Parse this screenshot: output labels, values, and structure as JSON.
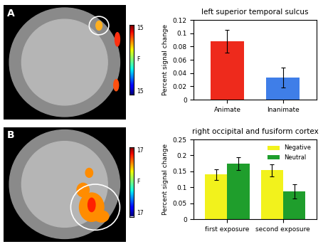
{
  "chart_data": [
    {
      "type": "bar",
      "panel": "A",
      "title": "left superior temporal sulcus",
      "y_label": "Percent signal change",
      "categories": [
        "Animate",
        "Inanimate"
      ],
      "values": [
        0.088,
        0.033
      ],
      "errors": [
        0.017,
        0.015
      ],
      "colors": [
        "#ee2a1c",
        "#3f7ee8"
      ],
      "ylim": [
        0,
        0.12
      ],
      "yticks": [
        0,
        0.02,
        0.04,
        0.06,
        0.08,
        0.1,
        0.12
      ]
    },
    {
      "type": "bar",
      "panel": "B",
      "title": "right occipital and fusiform cortex",
      "y_label": "Percent signal change",
      "categories": [
        "first exposure",
        "second exposure"
      ],
      "series": [
        {
          "name": "Negative",
          "color": "#f2f21c",
          "values": [
            0.14,
            0.153
          ],
          "errors": [
            0.017,
            0.018
          ]
        },
        {
          "name": "Neutral",
          "color": "#1f9e2c",
          "values": [
            0.175,
            0.087
          ],
          "errors": [
            0.02,
            0.022
          ]
        }
      ],
      "legend": "upper right",
      "ylim": [
        0,
        0.25
      ],
      "yticks": [
        0,
        0.05,
        0.1,
        0.15,
        0.2,
        0.25
      ]
    }
  ],
  "brain_maps": [
    {
      "panel": "A",
      "colorbar_label": "F",
      "colorbar_ticks": [
        15,
        15
      ]
    },
    {
      "panel": "B",
      "colorbar_label": "F",
      "colorbar_ticks": [
        17,
        17
      ]
    }
  ]
}
